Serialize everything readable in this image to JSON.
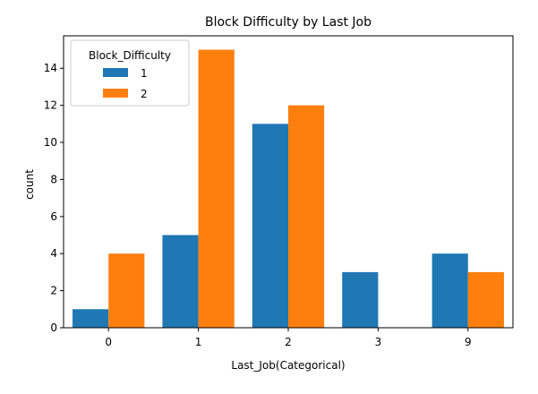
{
  "chart_data": {
    "type": "bar",
    "title": "Block Difficulty by Last Job",
    "xlabel": "Last_Job(Categorical)",
    "ylabel": "count",
    "categories": [
      "0",
      "1",
      "2",
      "3",
      "9"
    ],
    "series": [
      {
        "name": "1",
        "color": "#1f77b4",
        "values": [
          1,
          5,
          11,
          3,
          4
        ]
      },
      {
        "name": "2",
        "color": "#ff7f0e",
        "values": [
          4,
          15,
          12,
          0,
          3
        ]
      }
    ],
    "ylim": [
      0,
      15.75
    ],
    "yticks": [
      0,
      2,
      4,
      6,
      8,
      10,
      12,
      14
    ],
    "grid": false,
    "legend": {
      "title": "Block_Difficulty",
      "placement": "top-left"
    }
  }
}
